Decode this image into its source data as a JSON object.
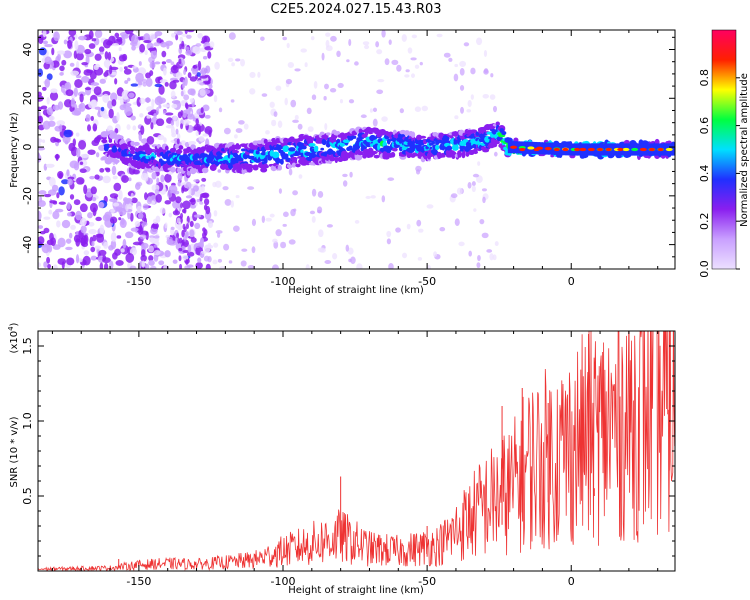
{
  "chart_data": [
    {
      "type": "heatmap",
      "title": "C2E5.2024.027.15.43.R03",
      "xlabel": "Height of straight line (km)",
      "ylabel": "Frequency (Hz)",
      "xlim": [
        -185,
        36
      ],
      "ylim": [
        -50,
        48
      ],
      "x_ticks": [
        -150,
        -100,
        -50,
        0
      ],
      "x_tick_labels": [
        "-150",
        "-100",
        "-50",
        "0"
      ],
      "y_ticks": [
        -40,
        -20,
        0,
        20,
        40
      ],
      "y_tick_labels": [
        "-40",
        "-20",
        "0",
        "20",
        "40"
      ],
      "colorbar": {
        "label": "Normalized spectral amplitude",
        "range": [
          0,
          1
        ],
        "ticks": [
          0.0,
          0.2,
          0.4,
          0.6,
          0.8
        ],
        "tick_labels": [
          "0.0",
          "0.2",
          "0.4",
          "0.6",
          "0.8"
        ],
        "colors": [
          "#ece0ff",
          "#c9a0ff",
          "#8a1fef",
          "#2030ff",
          "#00e0ff",
          "#00ff40",
          "#ffff00",
          "#ff2000",
          "#ff0060"
        ]
      },
      "signal_band": [
        {
          "x": -160,
          "center": 0,
          "halfwidth": 6,
          "amp": 0.35
        },
        {
          "x": -150,
          "center": -4,
          "halfwidth": 5,
          "amp": 0.45
        },
        {
          "x": -130,
          "center": -5,
          "halfwidth": 5,
          "amp": 0.45
        },
        {
          "x": -110,
          "center": -4,
          "halfwidth": 6,
          "amp": 0.5
        },
        {
          "x": -90,
          "center": -1,
          "halfwidth": 6,
          "amp": 0.5
        },
        {
          "x": -70,
          "center": 2,
          "halfwidth": 6,
          "amp": 0.5
        },
        {
          "x": -50,
          "center": 0,
          "halfwidth": 5,
          "amp": 0.5
        },
        {
          "x": -40,
          "center": 1,
          "halfwidth": 5,
          "amp": 0.5
        },
        {
          "x": -30,
          "center": 3,
          "halfwidth": 5,
          "amp": 0.55
        },
        {
          "x": -25,
          "center": 6,
          "halfwidth": 4,
          "amp": 0.5
        },
        {
          "x": -22,
          "center": 0,
          "halfwidth": 3,
          "amp": 0.9
        },
        {
          "x": 0,
          "center": -1,
          "halfwidth": 3,
          "amp": 0.9
        },
        {
          "x": 20,
          "center": -1,
          "halfwidth": 3,
          "amp": 0.85
        },
        {
          "x": 36,
          "center": -1,
          "halfwidth": 3,
          "amp": 0.6
        }
      ]
    },
    {
      "type": "line",
      "xlabel": "Height of straight line (km)",
      "ylabel": "SNR (10 * v/v)",
      "y_exponent_label": "(x10",
      "y_exponent_power": "4",
      "y_exponent_close": ")",
      "xlim": [
        -185,
        36
      ],
      "ylim": [
        0,
        16000
      ],
      "x_ticks": [
        -150,
        -100,
        -50,
        0
      ],
      "x_tick_labels": [
        "-150",
        "-100",
        "-50",
        "0"
      ],
      "y_ticks": [
        5000,
        10000,
        15000
      ],
      "y_tick_labels": [
        "0.5",
        "1.0",
        "1.5"
      ],
      "color": "#ee3333",
      "envelope": {
        "x": [
          -185,
          -160,
          -150,
          -140,
          -130,
          -120,
          -110,
          -100,
          -90,
          -80,
          -70,
          -60,
          -50,
          -45,
          -40,
          -35,
          -30,
          -25,
          -20,
          -15,
          -10,
          -5,
          0,
          5,
          10,
          15,
          20,
          25,
          30,
          36
        ],
        "y": [
          150,
          250,
          500,
          600,
          550,
          700,
          900,
          1600,
          2200,
          2800,
          1800,
          1600,
          1900,
          2200,
          3200,
          4300,
          5300,
          6000,
          6800,
          8500,
          9000,
          9400,
          10000,
          10800,
          11200,
          11800,
          12300,
          12800,
          13200,
          13500
        ]
      },
      "spikes": [
        {
          "x": -157,
          "y": 800
        },
        {
          "x": -80,
          "y": 6300
        },
        {
          "x": -50,
          "y": 3000
        },
        {
          "x": -24,
          "y": 11000
        },
        {
          "x": -17,
          "y": 12200
        },
        {
          "x": -8,
          "y": 11200
        },
        {
          "x": 6,
          "y": 15800
        },
        {
          "x": 8,
          "y": 5000
        },
        {
          "x": 34,
          "y": 16000
        }
      ]
    }
  ]
}
